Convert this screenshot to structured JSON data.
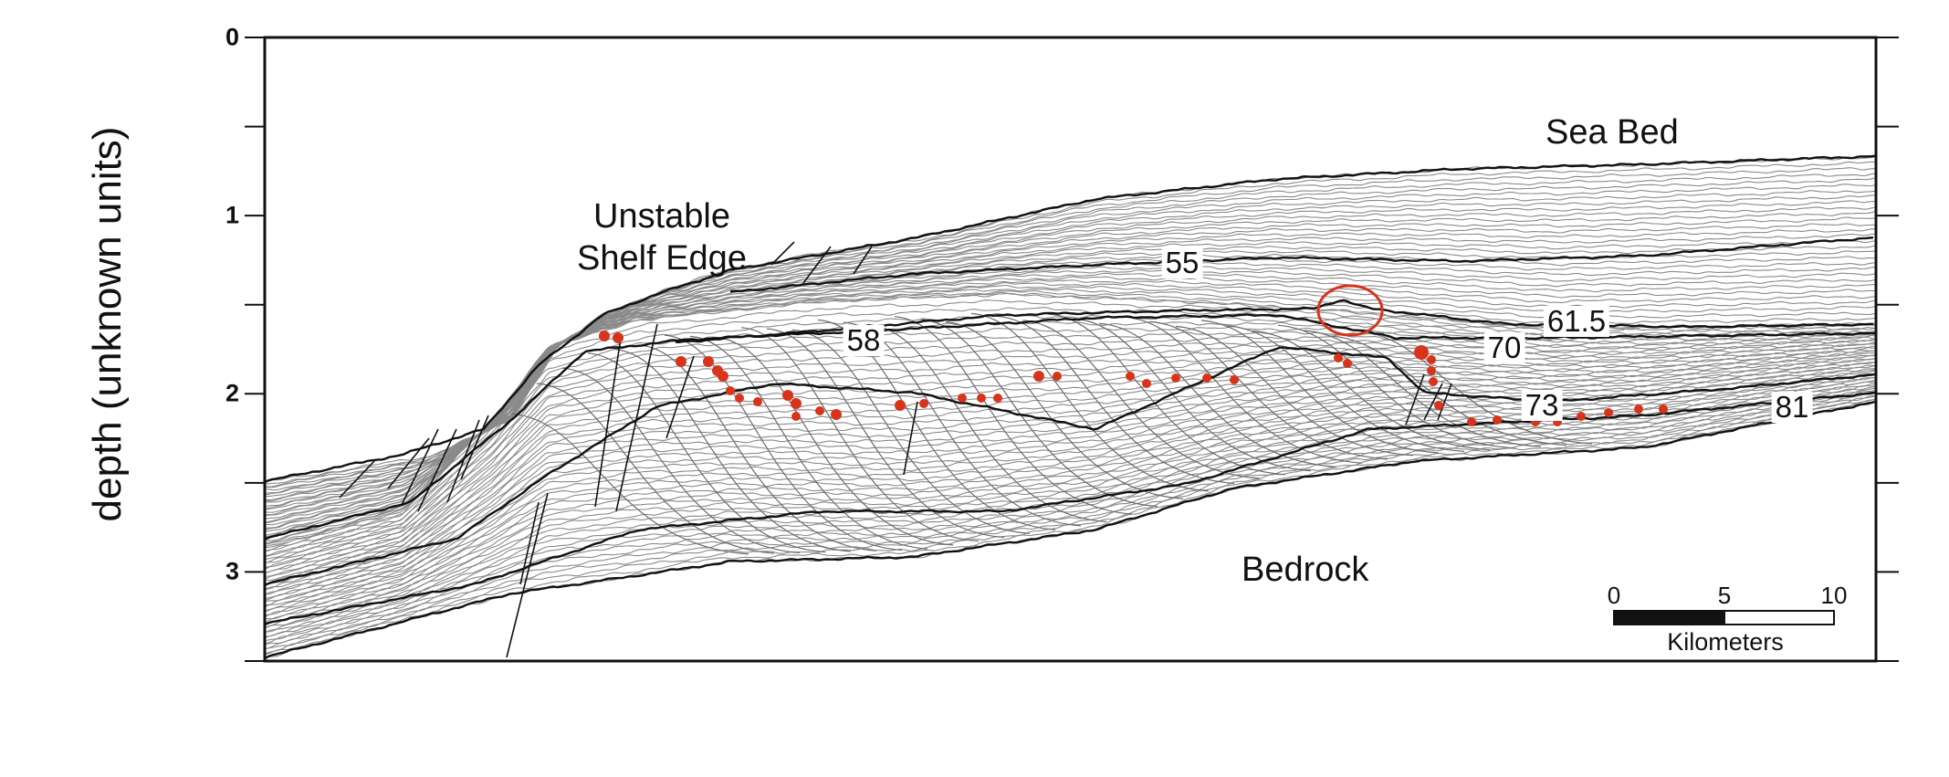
{
  "axis": {
    "ylabel": "depth (unknown units)",
    "ticks": [
      "0",
      "1",
      "2",
      "3"
    ],
    "ylim": [
      0,
      3.5
    ],
    "inverted": true
  },
  "annotations": {
    "unstable_shelf_line1": "Unstable",
    "unstable_shelf_line2": "Shelf Edge",
    "sea_bed": "Sea Bed",
    "bedrock": "Bedrock"
  },
  "horizons": [
    "55",
    "58",
    "61.5",
    "70",
    "73",
    "81"
  ],
  "scale_bar": {
    "ticks": [
      "0",
      "5",
      "10"
    ],
    "unit": "Kilometers"
  },
  "colors": {
    "frame": "#111111",
    "reflector_thin": "#8a8a8a",
    "reflector_thick": "#111111",
    "marker": "#d8341c",
    "highlight_circle": "#d8341c"
  }
}
